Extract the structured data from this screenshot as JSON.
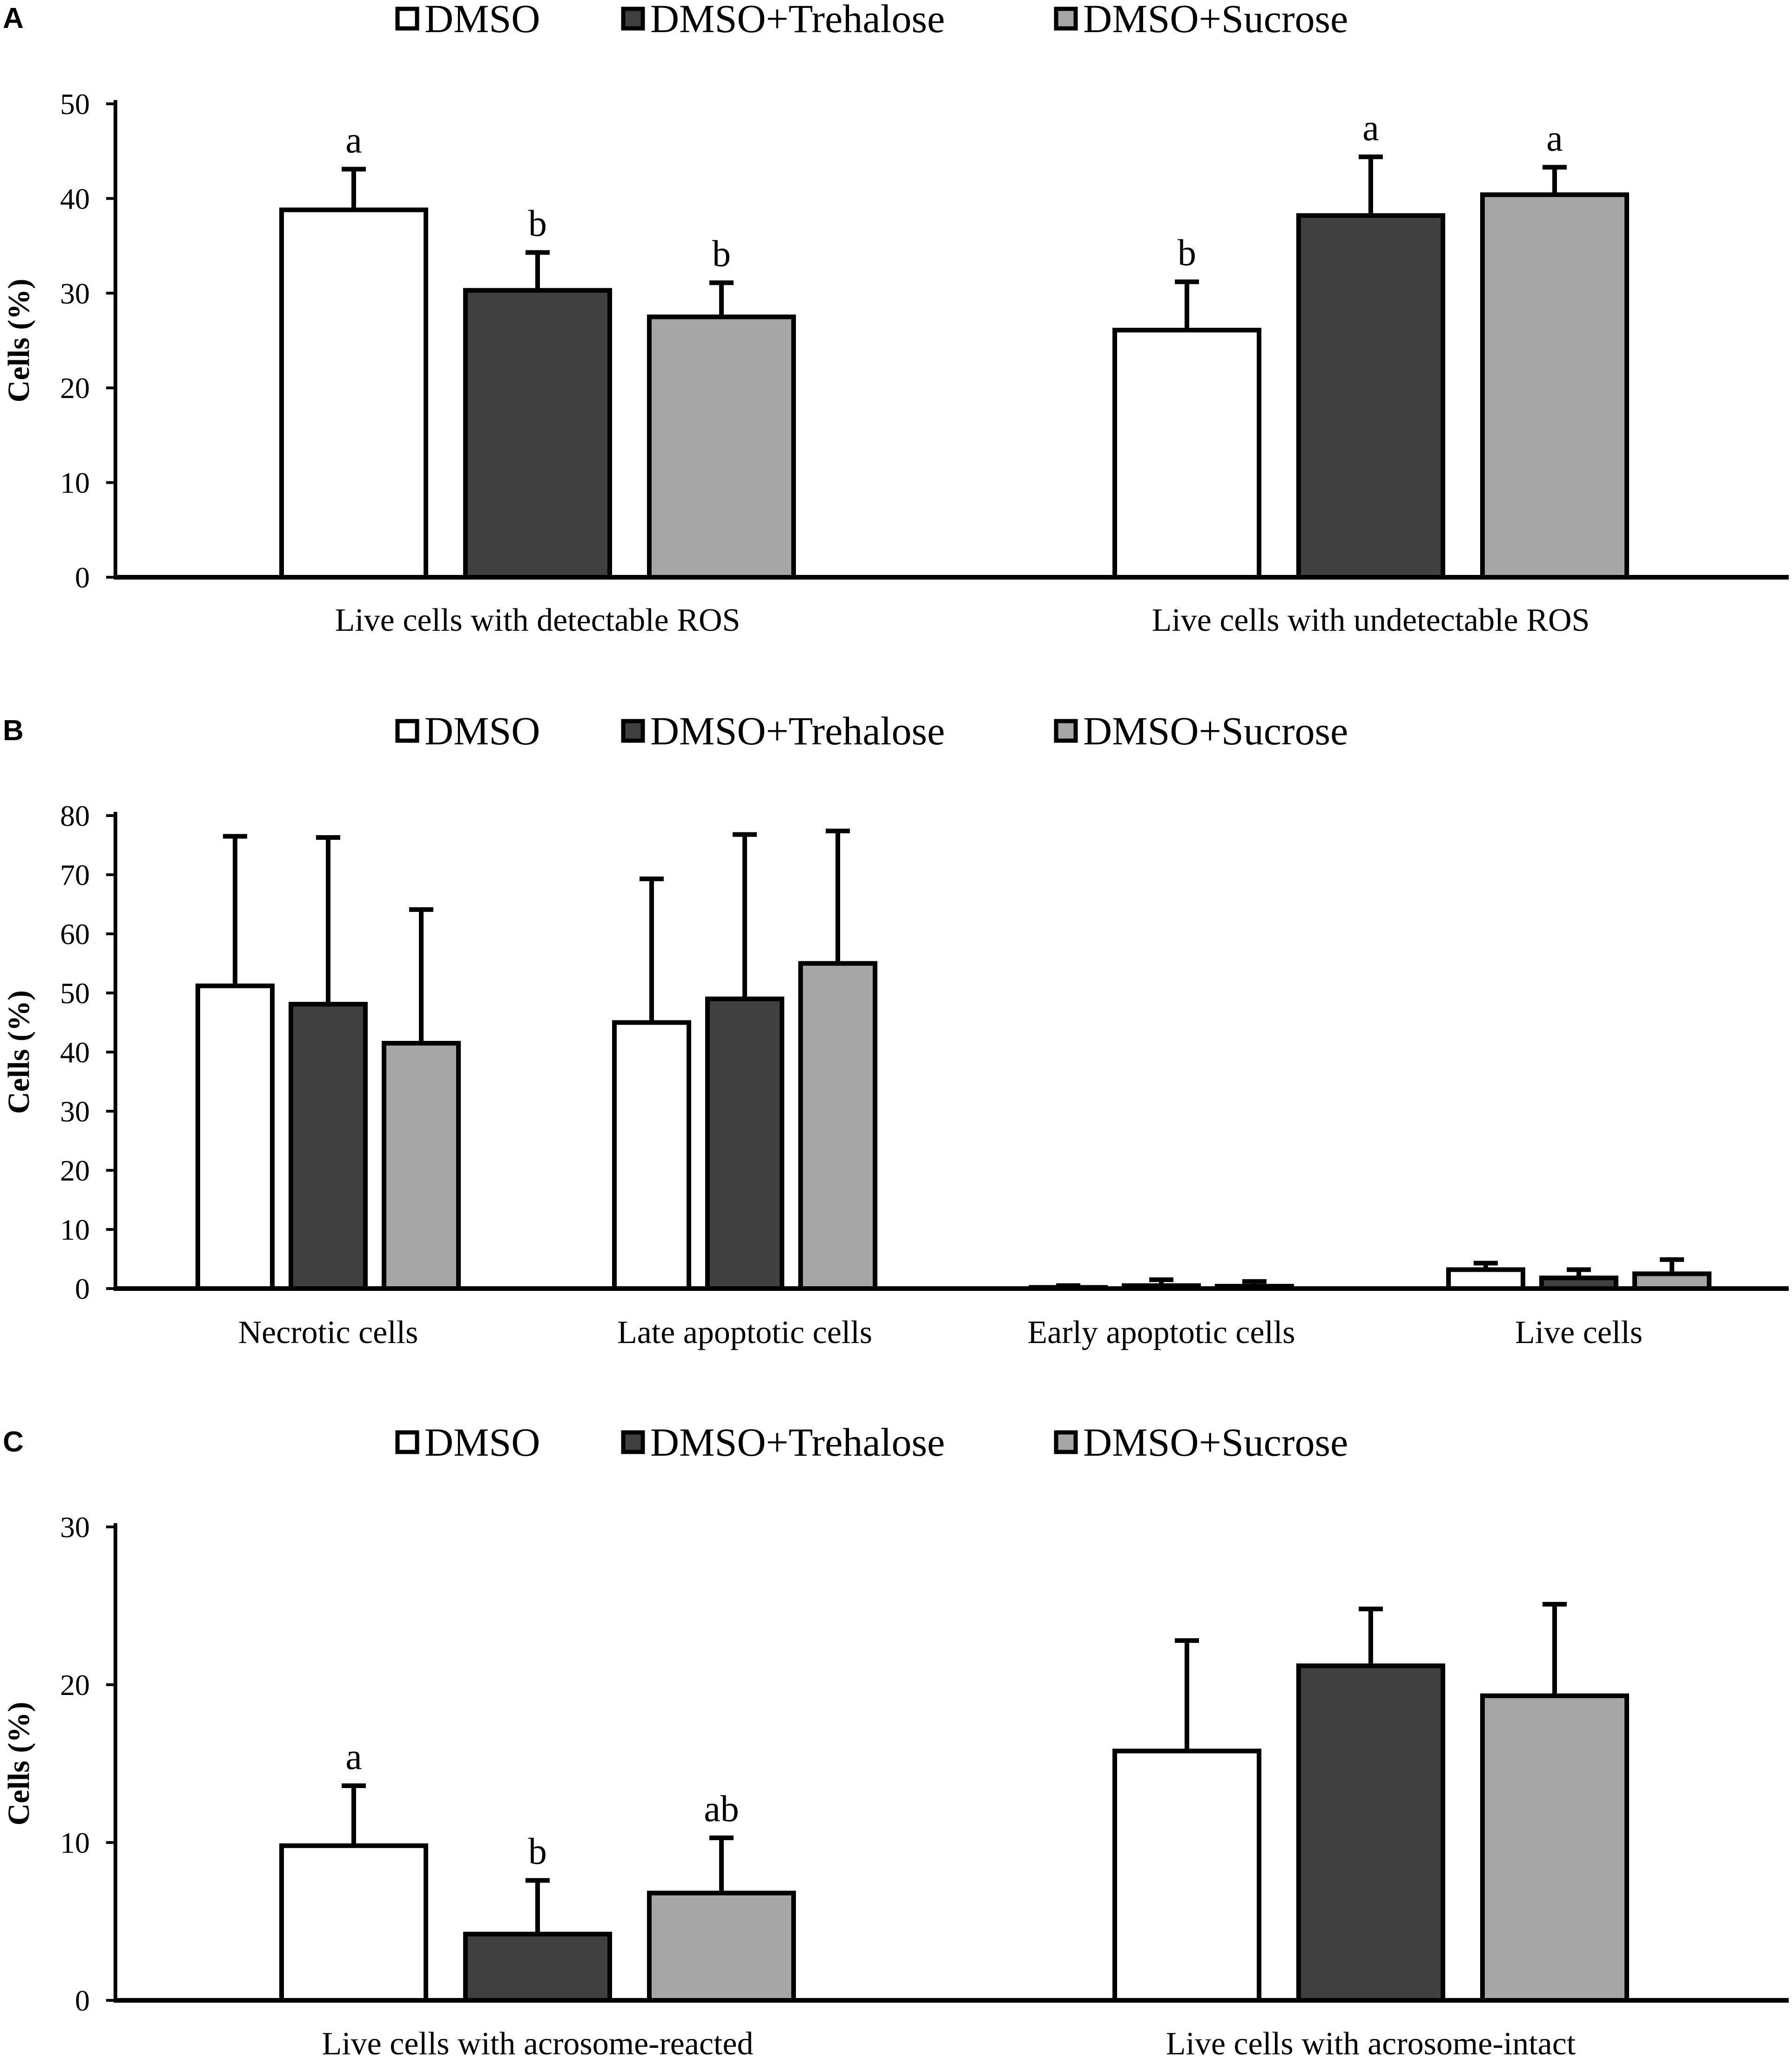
{
  "legend": [
    {
      "name": "DMSO",
      "color": "#ffffff"
    },
    {
      "name": "DMSO+Trehalose",
      "color": "#404040"
    },
    {
      "name": "DMSO+Sucrose",
      "color": "#a6a6a6"
    }
  ],
  "chart_data": [
    {
      "panel": "A",
      "type": "bar",
      "ylabel": "Cells (%)",
      "ylim": [
        0,
        50
      ],
      "yticks": [
        0,
        10,
        20,
        30,
        40,
        50
      ],
      "categories": [
        "Live cells with detectable ROS",
        "Live cells with undetectable ROS"
      ],
      "series": [
        {
          "name": "DMSO",
          "values": [
            38.8,
            26.1
          ],
          "errors": [
            4.3,
            5.1
          ],
          "labels": [
            "a",
            "b"
          ]
        },
        {
          "name": "DMSO+Trehalose",
          "values": [
            30.3,
            38.2
          ],
          "errors": [
            4.0,
            6.2
          ],
          "labels": [
            "b",
            "a"
          ]
        },
        {
          "name": "DMSO+Sucrose",
          "values": [
            27.5,
            40.4
          ],
          "errors": [
            3.6,
            2.9
          ],
          "labels": [
            "b",
            "a"
          ]
        }
      ]
    },
    {
      "panel": "B",
      "type": "bar",
      "ylabel": "Cells (%)",
      "ylim": [
        0,
        80
      ],
      "yticks": [
        0,
        10,
        20,
        30,
        40,
        50,
        60,
        70,
        80
      ],
      "categories": [
        "Necrotic cells",
        "Late apoptotic cells",
        "Early apoptotic cells",
        "Live cells"
      ],
      "series": [
        {
          "name": "DMSO",
          "values": [
            51.2,
            45.0,
            0.2,
            3.2
          ],
          "errors": [
            25.3,
            24.3,
            0.3,
            1.1
          ],
          "labels": [
            "",
            "",
            "",
            ""
          ]
        },
        {
          "name": "DMSO+Trehalose",
          "values": [
            48.1,
            49.0,
            0.5,
            1.8
          ],
          "errors": [
            28.2,
            27.8,
            1.0,
            1.4
          ],
          "labels": [
            "",
            "",
            "",
            ""
          ]
        },
        {
          "name": "DMSO+Sucrose",
          "values": [
            41.5,
            55.0,
            0.4,
            2.5
          ],
          "errors": [
            22.6,
            22.4,
            0.8,
            2.4
          ],
          "labels": [
            "",
            "",
            "",
            ""
          ]
        }
      ]
    },
    {
      "panel": "C",
      "type": "bar",
      "ylabel": "Cells (%)",
      "ylim": [
        0,
        30
      ],
      "yticks": [
        0,
        10,
        20,
        30
      ],
      "categories": [
        "Live cells with acrosome-reacted",
        "Live cells with acrosome-intact"
      ],
      "series": [
        {
          "name": "DMSO",
          "values": [
            9.8,
            15.8
          ],
          "errors": [
            3.8,
            7.0
          ],
          "labels": [
            "a",
            ""
          ]
        },
        {
          "name": "DMSO+Trehalose",
          "values": [
            4.2,
            21.2
          ],
          "errors": [
            3.4,
            3.6
          ],
          "labels": [
            "b",
            ""
          ]
        },
        {
          "name": "DMSO+Sucrose",
          "values": [
            6.8,
            19.3
          ],
          "errors": [
            3.5,
            5.8
          ],
          "labels": [
            "ab",
            ""
          ]
        }
      ]
    }
  ]
}
